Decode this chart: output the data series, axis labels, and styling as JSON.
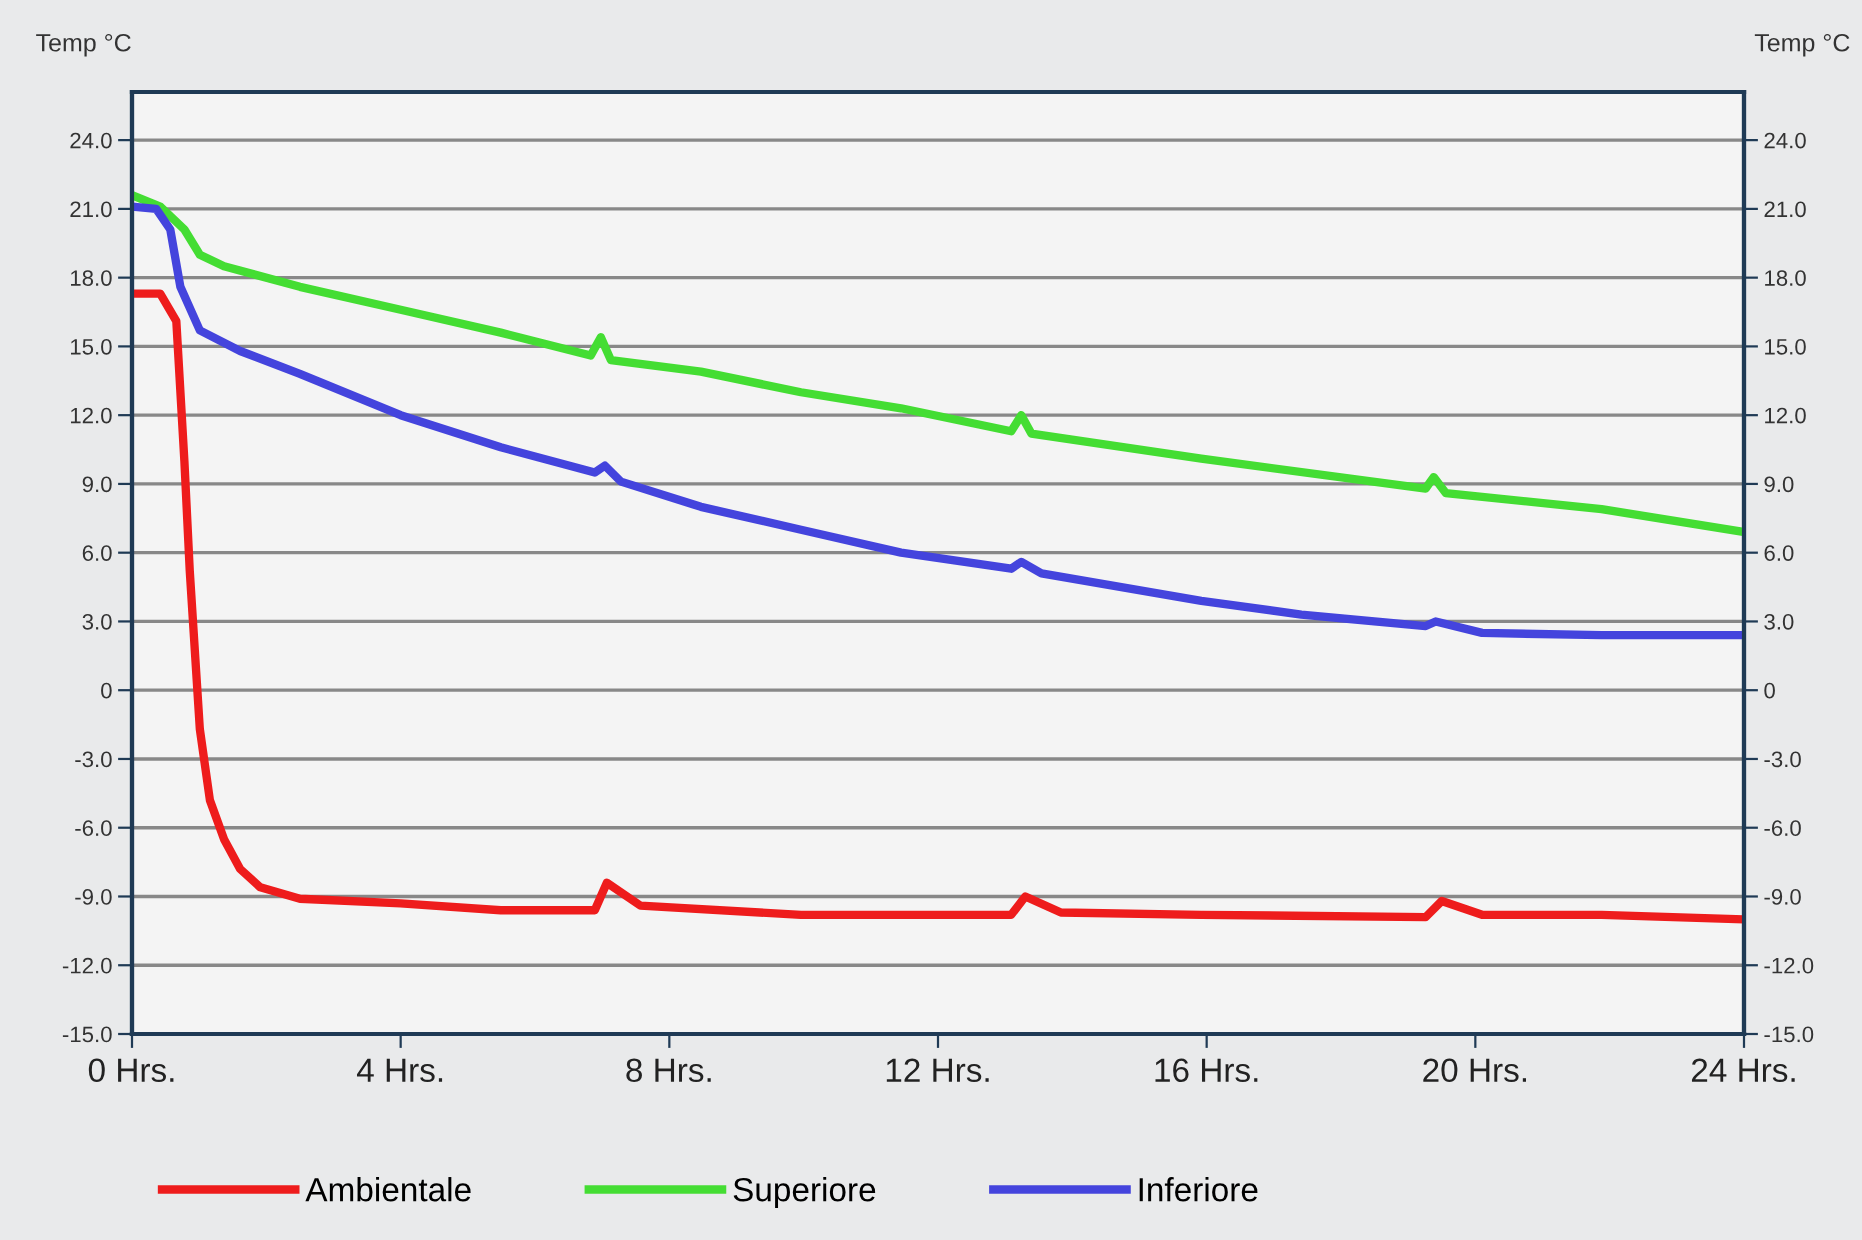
{
  "chart_data": {
    "type": "line",
    "ylabel": "Temp °C",
    "y2label": "Temp °C",
    "xlim": [
      0,
      24
    ],
    "xticks": [
      {
        "value": 0,
        "label": "0 Hrs."
      },
      {
        "value": 4,
        "label": "4 Hrs."
      },
      {
        "value": 8,
        "label": "8 Hrs."
      },
      {
        "value": 12,
        "label": "12 Hrs."
      },
      {
        "value": 16,
        "label": "16 Hrs."
      },
      {
        "value": 20,
        "label": "20 Hrs."
      },
      {
        "value": 24,
        "label": "24 Hrs."
      }
    ],
    "ylim": [
      -15,
      26.1
    ],
    "yticks": [
      {
        "value": 24,
        "label": "24.0"
      },
      {
        "value": 21,
        "label": "21.0"
      },
      {
        "value": 18,
        "label": "18.0"
      },
      {
        "value": 15,
        "label": "15.0"
      },
      {
        "value": 12,
        "label": "12.0"
      },
      {
        "value": 9,
        "label": "9.0"
      },
      {
        "value": 6,
        "label": "6.0"
      },
      {
        "value": 3,
        "label": "3.0"
      },
      0,
      {
        "value": -3,
        "label": "-3.0"
      },
      {
        "value": -6,
        "label": "-6.0"
      },
      {
        "value": -9,
        "label": "-9.0"
      },
      {
        "value": -12,
        "label": "-12.0"
      },
      {
        "value": -15,
        "label": "-15.0"
      }
    ],
    "y2lim": [
      -15,
      26.1
    ],
    "y2ticks": [
      {
        "value": 24,
        "label": "24.0"
      },
      {
        "value": 21,
        "label": "21.0"
      },
      {
        "value": 18,
        "label": "18.0"
      },
      {
        "value": 15,
        "label": "15.0"
      },
      {
        "value": 12,
        "label": "12.0"
      },
      {
        "value": 9,
        "label": "9.0"
      },
      {
        "value": 6,
        "label": "6.0"
      },
      {
        "value": 3,
        "label": "3.0"
      },
      0,
      {
        "value": -3,
        "label": "-3.0"
      },
      {
        "value": -6,
        "label": "-6.0"
      },
      {
        "value": -9,
        "label": "-9.0"
      },
      {
        "value": -12,
        "label": "-12.0"
      },
      {
        "value": -15,
        "label": "-15.0"
      }
    ],
    "grid": "y",
    "legend": "bottom",
    "marker": "none",
    "line_style": "solid",
    "series": [
      {
        "name": "Ambientale",
        "color": "#ee1c1c",
        "x": [
          0,
          0.42,
          0.66,
          0.78,
          0.86,
          1.01,
          1.16,
          1.37,
          1.61,
          1.91,
          2.5,
          4.0,
          5.49,
          6.89,
          7.07,
          7.57,
          9.96,
          13.09,
          13.3,
          13.83,
          15.92,
          19.26,
          19.5,
          20.1,
          21.88,
          24
        ],
        "values": [
          17.3,
          17.3,
          16.1,
          10,
          5.2,
          -1.7,
          -4.8,
          -6.5,
          -7.8,
          -8.6,
          -9.1,
          -9.3,
          -9.6,
          -9.6,
          -8.4,
          -9.4,
          -9.8,
          -9.8,
          -9.0,
          -9.7,
          -9.8,
          -9.9,
          -9.2,
          -9.8,
          -9.8,
          -10
        ]
      },
      {
        "name": "Superiore",
        "color": "#44dd33",
        "x": [
          0,
          0.42,
          0.78,
          1.01,
          1.37,
          2.5,
          4.0,
          5.49,
          6.83,
          6.98,
          7.13,
          8.47,
          9.96,
          11.45,
          13.09,
          13.24,
          13.39,
          15.92,
          19.26,
          19.38,
          19.56,
          21.88,
          24
        ],
        "values": [
          21.6,
          21.1,
          20.1,
          19,
          18.5,
          17.6,
          16.6,
          15.6,
          14.6,
          15.4,
          14.4,
          13.9,
          13,
          12.3,
          11.3,
          12,
          11.2,
          10.1,
          8.8,
          9.3,
          8.6,
          7.9,
          6.9
        ]
      },
      {
        "name": "Inferiore",
        "color": "#4444dd",
        "x": [
          0,
          0.36,
          0.57,
          0.72,
          1.01,
          1.61,
          2.5,
          4.0,
          5.49,
          6.89,
          7.04,
          7.28,
          8.47,
          9.96,
          11.45,
          13.09,
          13.24,
          13.54,
          15.92,
          17.41,
          19.26,
          19.41,
          20.1,
          21.88,
          24
        ],
        "values": [
          21.1,
          21.0,
          20.1,
          17.6,
          15.7,
          14.8,
          13.8,
          12,
          10.6,
          9.5,
          9.8,
          9.1,
          8,
          7,
          6,
          5.3,
          5.6,
          5.1,
          3.9,
          3.3,
          2.8,
          3.0,
          2.5,
          2.4,
          2.4
        ]
      }
    ]
  }
}
